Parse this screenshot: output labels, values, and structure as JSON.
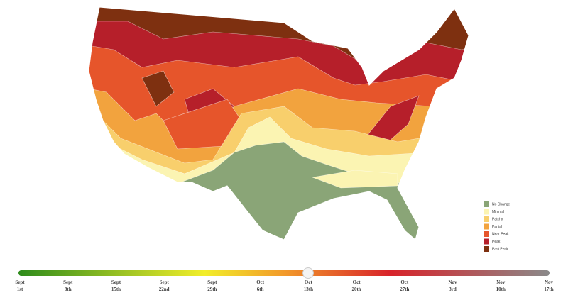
{
  "legend": {
    "items": [
      {
        "label": "No Change",
        "color": "#8aa577"
      },
      {
        "label": "Minimal",
        "color": "#fbf4b2"
      },
      {
        "label": "Patchy",
        "color": "#f8cf6c"
      },
      {
        "label": "Partial",
        "color": "#f2a33e"
      },
      {
        "label": "Near Peak",
        "color": "#e6552b"
      },
      {
        "label": "Peak",
        "color": "#b61f2a"
      },
      {
        "label": "Past Peak",
        "color": "#7e3010"
      }
    ]
  },
  "timeline": {
    "labels": [
      {
        "month": "Sept",
        "day": "1st"
      },
      {
        "month": "Sept",
        "day": "8th"
      },
      {
        "month": "Sept",
        "day": "15th"
      },
      {
        "month": "Sept",
        "day": "22nd"
      },
      {
        "month": "Sept",
        "day": "29th"
      },
      {
        "month": "Oct",
        "day": "6th"
      },
      {
        "month": "Oct",
        "day": "13th"
      },
      {
        "month": "Oct",
        "day": "20th"
      },
      {
        "month": "Oct",
        "day": "27th"
      },
      {
        "month": "Nov",
        "day": "3rd"
      },
      {
        "month": "Nov",
        "day": "10th"
      },
      {
        "month": "Nov",
        "day": "17th"
      }
    ]
  }
}
